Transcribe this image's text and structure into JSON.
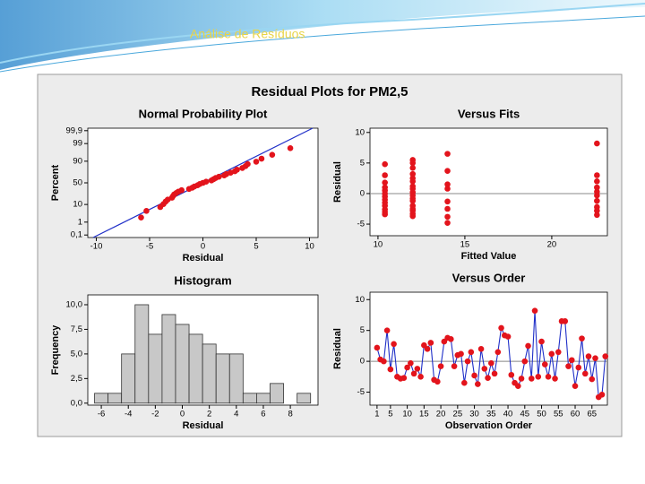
{
  "slide_title": "Análise de Resíduos",
  "figure_title": "Residual Plots for PM2,5",
  "chart_data": [
    {
      "type": "probability",
      "title": "Normal Probability Plot",
      "x_label": "Residual",
      "y_label": "Percent",
      "yscale": "probit",
      "color": "#e3141c",
      "line_color": "#1f2fc8",
      "xlim": [
        -10.8,
        10.8
      ],
      "xticks": [
        -10,
        -5,
        0,
        5,
        10
      ],
      "ylim": [
        0.06,
        99.94
      ],
      "yticks": [
        {
          "value": 0.1,
          "label": "0,1"
        },
        1,
        10,
        50,
        90,
        99,
        {
          "value": 99.9,
          "label": "99,9"
        }
      ],
      "x": [
        -5.8,
        -5.3,
        -4.0,
        -3.7,
        -3.5,
        -3.3,
        -2.9,
        -2.8,
        -2.7,
        -2.5,
        -2.3,
        -2.0,
        -1.3,
        -1.0,
        -0.8,
        -0.5,
        -0.3,
        0.0,
        0.3,
        0.8,
        1.0,
        1.2,
        1.5,
        2.0,
        2.2,
        2.6,
        3.0,
        3.2,
        3.7,
        4.0,
        4.2,
        5.0,
        5.5,
        6.5,
        8.2
      ],
      "values": [
        2.0,
        4.8,
        7.6,
        10.4,
        13.3,
        16.1,
        18.9,
        21.8,
        24.6,
        27.4,
        30.2,
        33.1,
        35.9,
        38.7,
        41.5,
        44.4,
        47.2,
        50.0,
        52.8,
        55.7,
        58.5,
        61.3,
        64.1,
        67.0,
        69.8,
        72.6,
        75.4,
        78.3,
        81.1,
        83.9,
        86.7,
        89.5,
        92.4,
        95.2,
        98.0
      ],
      "fit_line": {
        "x": [
          -10.3,
          10.3
        ],
        "y": [
          0.06,
          99.94
        ]
      }
    },
    {
      "type": "scatter",
      "title": "Versus Fits",
      "x_label": "Fitted Value",
      "y_label": "Residual",
      "color": "#e3141c",
      "hline": 0,
      "xlim": [
        9.54,
        23.2
      ],
      "xticks": [
        10,
        15,
        20
      ],
      "ylim": [
        -6.9,
        10.7
      ],
      "yticks": [
        -5,
        0,
        5,
        10
      ],
      "x": [
        10.4,
        10.4,
        10.4,
        10.4,
        10.4,
        10.4,
        10.4,
        10.4,
        10.4,
        10.4,
        10.4,
        10.4,
        10.4,
        12.0,
        12.0,
        12.0,
        12.0,
        12.0,
        12.0,
        12.0,
        12.0,
        12.0,
        12.0,
        12.0,
        12.0,
        12.0,
        12.0,
        12.0,
        12.0,
        12.0,
        14.0,
        14.0,
        14.0,
        14.0,
        14.0,
        14.0,
        14.0,
        14.0,
        22.6,
        22.6,
        22.6,
        22.6,
        22.6,
        22.6,
        22.6,
        22.6,
        22.6,
        22.6
      ],
      "values": [
        -3.4,
        -3.0,
        -2.6,
        -2.0,
        -1.5,
        -1.0,
        -0.5,
        0,
        0.5,
        1.0,
        1.8,
        3.0,
        4.8,
        -3.7,
        -3.3,
        -2.8,
        -2.5,
        -2.0,
        -1.2,
        -0.8,
        -0.3,
        0.2,
        0.8,
        1.2,
        2.0,
        2.5,
        3.2,
        4.2,
        5.0,
        5.5,
        -4.8,
        -3.8,
        -2.5,
        -1.3,
        0.8,
        1.5,
        3.7,
        6.5,
        -3.5,
        -2.8,
        -2.2,
        -1.2,
        -0.3,
        0.3,
        1.0,
        2.0,
        3.0,
        8.2
      ]
    },
    {
      "type": "histogram",
      "title": "Histogram",
      "x_label": "Residual",
      "y_label": "Frequency",
      "color": "#c8c8c8",
      "xlim": [
        -7.0,
        10.05
      ],
      "xticks": [
        -6,
        -4,
        -2,
        0,
        2,
        4,
        6,
        8
      ],
      "ylim": [
        -0.2,
        11.0
      ],
      "yticks": [
        {
          "value": 0,
          "label": "0,0"
        },
        {
          "value": 2.5,
          "label": "2,5"
        },
        {
          "value": 5,
          "label": "5,0"
        },
        {
          "value": 7.5,
          "label": "7,5"
        },
        {
          "value": 10,
          "label": "10,0"
        }
      ],
      "bins": [
        -6.5,
        -5.5,
        -4.5,
        -3.5,
        -2.5,
        -1.5,
        -0.5,
        0.5,
        1.5,
        2.5,
        3.5,
        4.5,
        5.5,
        6.5,
        7.5,
        8.5,
        9.5
      ],
      "values": [
        1,
        1,
        5,
        10,
        7,
        9,
        8,
        7,
        6,
        5,
        5,
        1,
        1,
        2,
        0,
        1
      ]
    },
    {
      "type": "line",
      "title": "Versus Order",
      "x_label": "Observation Order",
      "y_label": "Residual",
      "color": "#e3141c",
      "line_color": "#1f2fc8",
      "hline": 0,
      "xlim": [
        -1.1,
        69.6
      ],
      "xticks": [
        1,
        5,
        10,
        15,
        20,
        25,
        30,
        35,
        40,
        45,
        50,
        55,
        60,
        65
      ],
      "ylim": [
        -7.1,
        11.2
      ],
      "yticks": [
        -5,
        0,
        5,
        10
      ],
      "x": [
        1,
        2,
        3,
        4,
        5,
        6,
        7,
        8,
        9,
        10,
        11,
        12,
        13,
        14,
        15,
        16,
        17,
        18,
        19,
        20,
        21,
        22,
        23,
        24,
        25,
        26,
        27,
        28,
        29,
        30,
        31,
        32,
        33,
        34,
        35,
        36,
        37,
        38,
        39,
        40,
        41,
        42,
        43,
        44,
        45,
        46,
        47,
        48,
        49,
        50,
        51,
        52,
        53,
        54,
        55,
        56,
        57,
        58,
        59,
        60,
        61,
        62,
        63,
        64,
        65,
        66,
        67,
        68,
        69
      ],
      "values": [
        2.2,
        0.3,
        0,
        5,
        -1.3,
        2.8,
        -2.5,
        -2.8,
        -2.7,
        -1.0,
        -0.3,
        -2.0,
        -1.2,
        -2.5,
        2.6,
        2.0,
        3.0,
        -3.0,
        -3.3,
        -0.8,
        3.2,
        3.8,
        3.6,
        -0.8,
        1.0,
        1.2,
        -3.5,
        0,
        1.5,
        -2.3,
        -3.7,
        2.0,
        -1.2,
        -2.7,
        -0.3,
        -2.0,
        1.5,
        5.4,
        4.2,
        4.0,
        -2.2,
        -3.5,
        -4.0,
        -2.8,
        0,
        2.5,
        -2.8,
        8.2,
        -2.5,
        3.2,
        -0.5,
        -2.5,
        1.2,
        -2.8,
        1.5,
        6.5,
        6.5,
        -0.8,
        0.2,
        -4.0,
        -1.0,
        3.7,
        -2.0,
        0.8,
        -2.9,
        0.5,
        -5.8,
        -5.4,
        0.8
      ]
    }
  ]
}
